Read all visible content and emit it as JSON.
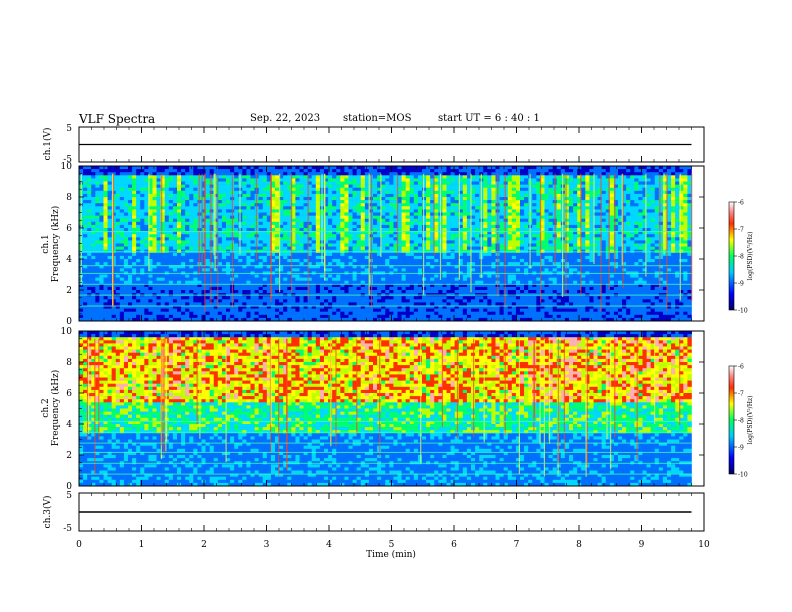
{
  "header": {
    "title": "VLF Spectra",
    "date": "Sep. 22, 2023",
    "station": "station=MOS",
    "start_time": "start UT =  6 : 40 : 1"
  },
  "chart_data": [
    {
      "id": "ch1-voltage",
      "type": "line",
      "ylabel": "ch.1(V)",
      "ylim": [
        -5,
        5
      ],
      "yticks": [
        "5",
        "-5"
      ],
      "series": [
        {
          "x": [
            0,
            9.8
          ],
          "y": [
            0,
            0
          ]
        }
      ]
    },
    {
      "id": "ch1-spectrogram",
      "type": "heatmap",
      "ylabel": "ch.1\nFrequency (kHz)",
      "ylabel_line1": "ch.1",
      "ylabel_line2": "Frequency (kHz)",
      "xlim": [
        0,
        10
      ],
      "ylim": [
        0,
        10
      ],
      "yticks": [
        0,
        2,
        4,
        6,
        8,
        10
      ],
      "colorbar": {
        "label": "log(PSD)(V²/Hz)",
        "ticks": [
          "-6",
          "-7",
          "-8",
          "-9",
          "-10"
        ],
        "range": [
          -10,
          -6
        ]
      }
    },
    {
      "id": "ch2-spectrogram",
      "type": "heatmap",
      "ylabel_line1": "ch.2",
      "ylabel_line2": "Frequency (kHz)",
      "xlim": [
        0,
        10
      ],
      "ylim": [
        0,
        10
      ],
      "yticks": [
        0,
        2,
        4,
        6,
        8,
        10
      ],
      "colorbar": {
        "label": "log(PSD)(V²/Hz)",
        "ticks": [
          "-6",
          "-7",
          "-8",
          "-9",
          "-10"
        ],
        "range": [
          -10,
          -6
        ]
      }
    },
    {
      "id": "ch3-voltage",
      "type": "line",
      "ylabel": "ch.3(V)",
      "ylim": [
        -5,
        5
      ],
      "yticks": [
        "5",
        "-5"
      ],
      "series": [
        {
          "x": [
            0,
            9.8
          ],
          "y": [
            0,
            0
          ]
        }
      ]
    }
  ],
  "x_axis": {
    "label": "Time (min)",
    "ticks": [
      "0",
      "1",
      "2",
      "3",
      "4",
      "5",
      "6",
      "7",
      "8",
      "9",
      "10"
    ]
  },
  "colors": {
    "colormap": [
      "#000080",
      "#0000ff",
      "#00c0ff",
      "#00ff80",
      "#ffff00",
      "#ff4000",
      "#ffffff"
    ]
  }
}
